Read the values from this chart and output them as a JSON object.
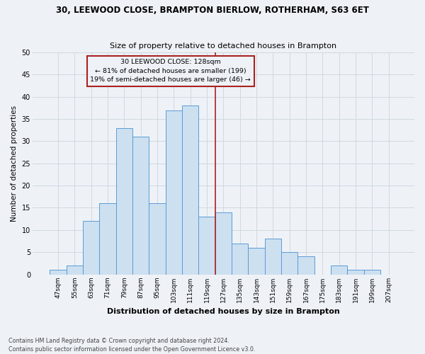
{
  "title1": "30, LEEWOOD CLOSE, BRAMPTON BIERLOW, ROTHERHAM, S63 6ET",
  "title2": "Size of property relative to detached houses in Brampton",
  "xlabel": "Distribution of detached houses by size in Brampton",
  "ylabel": "Number of detached properties",
  "footnote": "Contains HM Land Registry data © Crown copyright and database right 2024.\nContains public sector information licensed under the Open Government Licence v3.0.",
  "categories": [
    "47sqm",
    "55sqm",
    "63sqm",
    "71sqm",
    "79sqm",
    "87sqm",
    "95sqm",
    "103sqm",
    "111sqm",
    "119sqm",
    "127sqm",
    "135sqm",
    "143sqm",
    "151sqm",
    "159sqm",
    "167sqm",
    "175sqm",
    "183sqm",
    "191sqm",
    "199sqm",
    "207sqm"
  ],
  "values": [
    1,
    2,
    12,
    16,
    33,
    31,
    16,
    37,
    38,
    13,
    14,
    7,
    6,
    8,
    5,
    4,
    0,
    2,
    1,
    1,
    0
  ],
  "bar_color": "#cce0f0",
  "bar_edge_color": "#5b9bd5",
  "grid_color": "#d0d8e0",
  "vline_x": 9.5,
  "vline_color": "#aa2222",
  "annotation_text": "30 LEEWOOD CLOSE: 128sqm\n← 81% of detached houses are smaller (199)\n19% of semi-detached houses are larger (46) →",
  "annotation_box_color": "#aa2222",
  "ylim": [
    0,
    50
  ],
  "yticks": [
    0,
    5,
    10,
    15,
    20,
    25,
    30,
    35,
    40,
    45,
    50
  ],
  "background_color": "#eef2f7"
}
